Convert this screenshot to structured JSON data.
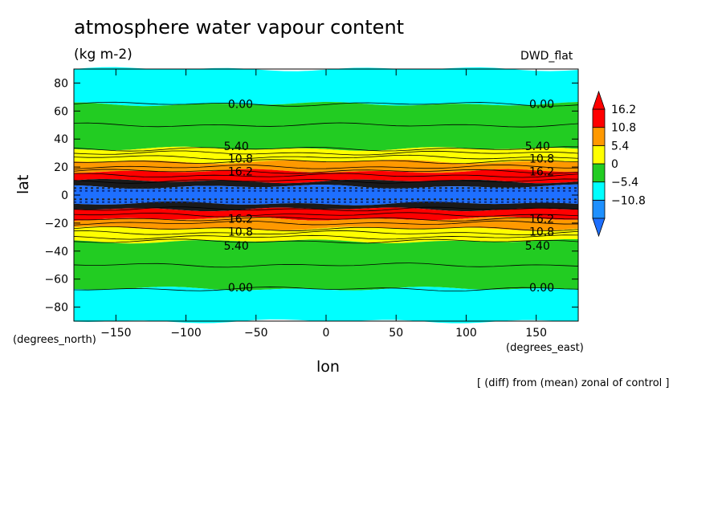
{
  "header": {
    "title": "atmosphere water vapour content",
    "units": "(kg m-2)",
    "model": "DWD_flat"
  },
  "footnote": "[ (diff) from (mean) zonal of control ]",
  "chart_data": {
    "type": "heatmap",
    "title": "atmosphere water vapour content",
    "subtitle": "(kg m-2)",
    "xlabel": "lon",
    "ylabel": "lat",
    "x_units_label": "(degrees_east)",
    "y_units_label": "(degrees_north)",
    "xlim": [
      -180,
      180
    ],
    "ylim": [
      -90,
      90
    ],
    "x_ticks": [
      -150,
      -100,
      -50,
      0,
      50,
      100,
      150
    ],
    "y_ticks": [
      -80,
      -60,
      -40,
      -20,
      0,
      20,
      40,
      60,
      80
    ],
    "x_tick_labels": [
      "−150",
      "−100",
      "−50",
      "0",
      "50",
      "100",
      "150"
    ],
    "y_tick_labels": [
      "−80",
      "−60",
      "−40",
      "−20",
      "0",
      "20",
      "40",
      "60",
      "80"
    ],
    "colorbar": {
      "levels": [
        -10.8,
        -5.4,
        0,
        5.4,
        10.8,
        16.2
      ],
      "labels": [
        "−10.8",
        "−5.4",
        "0",
        "5.4",
        "10.8",
        "16.2"
      ],
      "colors": [
        "#1e90ff",
        "#00ffff",
        "#22cc22",
        "#ffff00",
        "#ff9900",
        "#ff0000"
      ],
      "extend": "both",
      "under_color": "#1e6fff",
      "over_color": "#ff0000"
    },
    "zonal_bands": [
      {
        "lat_from": 65,
        "lat_to": 90,
        "bin": "-5.4 to 0",
        "color": "#00ffff"
      },
      {
        "lat_from": 33,
        "lat_to": 65,
        "bin": "0 to 5.4",
        "color": "#22cc22"
      },
      {
        "lat_from": 24,
        "lat_to": 33,
        "bin": "5.4 to 10.8",
        "color": "#ffff00"
      },
      {
        "lat_from": 17,
        "lat_to": 24,
        "bin": "10.8 to 16.2",
        "color": "#ff9900"
      },
      {
        "lat_from": 10,
        "lat_to": 17,
        "bin": "> 16.2",
        "color": "#ff0000"
      },
      {
        "lat_from": 6,
        "lat_to": 10,
        "bin": "mixed",
        "color": "#1a1a1a"
      },
      {
        "lat_from": -6,
        "lat_to": 6,
        "bin": "< -10.8",
        "color": "#1e6fff"
      },
      {
        "lat_from": -10,
        "lat_to": -6,
        "bin": "mixed",
        "color": "#1a1a1a"
      },
      {
        "lat_from": -17,
        "lat_to": -10,
        "bin": "> 16.2",
        "color": "#ff0000"
      },
      {
        "lat_from": -24,
        "lat_to": -17,
        "bin": "10.8 to 16.2",
        "color": "#ff9900"
      },
      {
        "lat_from": -33,
        "lat_to": -24,
        "bin": "5.4 to 10.8",
        "color": "#ffff00"
      },
      {
        "lat_from": -67,
        "lat_to": -33,
        "bin": "0 to 5.4",
        "color": "#22cc22"
      },
      {
        "lat_from": -90,
        "lat_to": -67,
        "bin": "-5.4 to 0",
        "color": "#00ffff"
      }
    ],
    "contour_lines_lat": [
      65,
      50,
      33,
      30,
      27,
      24,
      20,
      17,
      14,
      10,
      -10,
      -14,
      -17,
      -20,
      -24,
      -27,
      -30,
      -33,
      -50,
      -67
    ],
    "contour_labels": [
      {
        "text": "0.00",
        "lon": -70,
        "lat": 65
      },
      {
        "text": "0.00",
        "lon": 145,
        "lat": 65
      },
      {
        "text": "5.40",
        "lon": -73,
        "lat": 35
      },
      {
        "text": "5.40",
        "lon": 142,
        "lat": 35
      },
      {
        "text": "10.8",
        "lon": -70,
        "lat": 26
      },
      {
        "text": "10.8",
        "lon": 145,
        "lat": 26
      },
      {
        "text": "16.2",
        "lon": -70,
        "lat": 17
      },
      {
        "text": "16.2",
        "lon": 145,
        "lat": 17
      },
      {
        "text": "16.2",
        "lon": -70,
        "lat": -17
      },
      {
        "text": "16.2",
        "lon": 145,
        "lat": -17
      },
      {
        "text": "10.8",
        "lon": -70,
        "lat": -26
      },
      {
        "text": "10.8",
        "lon": 145,
        "lat": -26
      },
      {
        "text": "5.40",
        "lon": -73,
        "lat": -36
      },
      {
        "text": "5.40",
        "lon": 142,
        "lat": -36
      },
      {
        "text": "0.00",
        "lon": -70,
        "lat": -66
      },
      {
        "text": "0.00",
        "lon": 145,
        "lat": -66
      }
    ]
  }
}
